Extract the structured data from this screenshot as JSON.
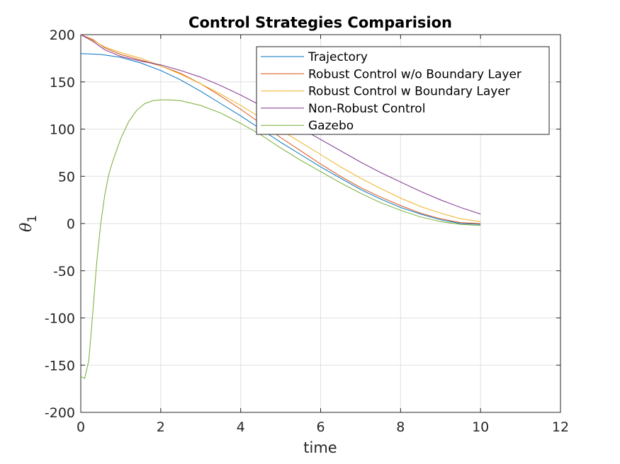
{
  "chart_data": {
    "type": "line",
    "title": "Control Strategies Comparision",
    "xlabel": "time",
    "ylabel": "θ",
    "ylabel_sub": "1",
    "xlim": [
      0,
      12
    ],
    "ylim": [
      -200,
      200
    ],
    "xticks": [
      0,
      2,
      4,
      6,
      8,
      10,
      12
    ],
    "yticks": [
      200,
      150,
      100,
      50,
      0,
      -50,
      -100,
      -150,
      -200
    ],
    "grid": true,
    "legend_position": "top-right",
    "series": [
      {
        "name": "Trajectory",
        "color": "#0072BD",
        "x": [
          0,
          0.5,
          1,
          1.5,
          2,
          2.5,
          3,
          3.5,
          4,
          4.5,
          5,
          5.5,
          6,
          6.5,
          7,
          7.5,
          8,
          8.5,
          9,
          9.5,
          10
        ],
        "y": [
          180,
          179,
          176,
          170,
          162,
          152,
          140,
          127,
          114,
          100,
          86,
          73,
          60,
          48,
          36,
          26,
          17,
          10,
          4,
          0,
          -1
        ]
      },
      {
        "name": "Robust Control w/o Boundary Layer",
        "color": "#D95319",
        "x": [
          0,
          0.3,
          0.6,
          1,
          1.5,
          2,
          2.5,
          3,
          3.5,
          4,
          4.5,
          5,
          5.5,
          6,
          6.5,
          7,
          7.5,
          8,
          8.5,
          9,
          9.5,
          10
        ],
        "y": [
          200,
          195,
          186,
          179,
          173,
          167,
          159,
          148,
          135,
          121,
          106,
          91,
          77,
          63,
          50,
          38,
          28,
          19,
          11,
          5,
          1,
          0
        ]
      },
      {
        "name": "Robust Control w Boundary Layer",
        "color": "#EDB120",
        "x": [
          0,
          0.3,
          0.6,
          1,
          1.5,
          2,
          2.5,
          3,
          3.5,
          4,
          4.5,
          5,
          5.5,
          6,
          6.5,
          7,
          7.5,
          8,
          8.5,
          9,
          9.5,
          10
        ],
        "y": [
          200,
          194,
          187,
          181,
          175,
          167,
          158,
          148,
          137,
          125,
          112,
          99,
          86,
          73,
          60,
          48,
          37,
          27,
          18,
          11,
          5,
          2
        ]
      },
      {
        "name": "Non-Robust Control",
        "color": "#7E2F8E",
        "x": [
          0,
          0.3,
          0.6,
          1,
          1.5,
          2,
          2.5,
          3,
          3.5,
          4,
          4.5,
          5,
          5.5,
          6,
          6.5,
          7,
          7.5,
          8,
          8.5,
          9,
          9.5,
          10
        ],
        "y": [
          200,
          193,
          184,
          177,
          172,
          168,
          162,
          155,
          146,
          136,
          125,
          113,
          101,
          89,
          77,
          65,
          54,
          44,
          34,
          25,
          17,
          10
        ]
      },
      {
        "name": "Gazebo",
        "color": "#77AC30",
        "x": [
          0,
          0.1,
          0.2,
          0.3,
          0.4,
          0.5,
          0.6,
          0.7,
          0.8,
          1,
          1.2,
          1.4,
          1.6,
          1.8,
          2,
          2.2,
          2.5,
          3,
          3.5,
          4,
          4.5,
          5,
          5.5,
          6,
          6.5,
          7,
          7.5,
          8,
          8.5,
          9,
          9.5,
          10
        ],
        "y": [
          -162,
          -164,
          -145,
          -95,
          -40,
          0,
          30,
          52,
          66,
          90,
          108,
          120,
          127,
          130,
          131,
          131,
          130,
          125,
          117,
          106,
          94,
          80,
          67,
          55,
          43,
          32,
          22,
          14,
          7,
          2,
          -1,
          -2
        ]
      }
    ]
  }
}
